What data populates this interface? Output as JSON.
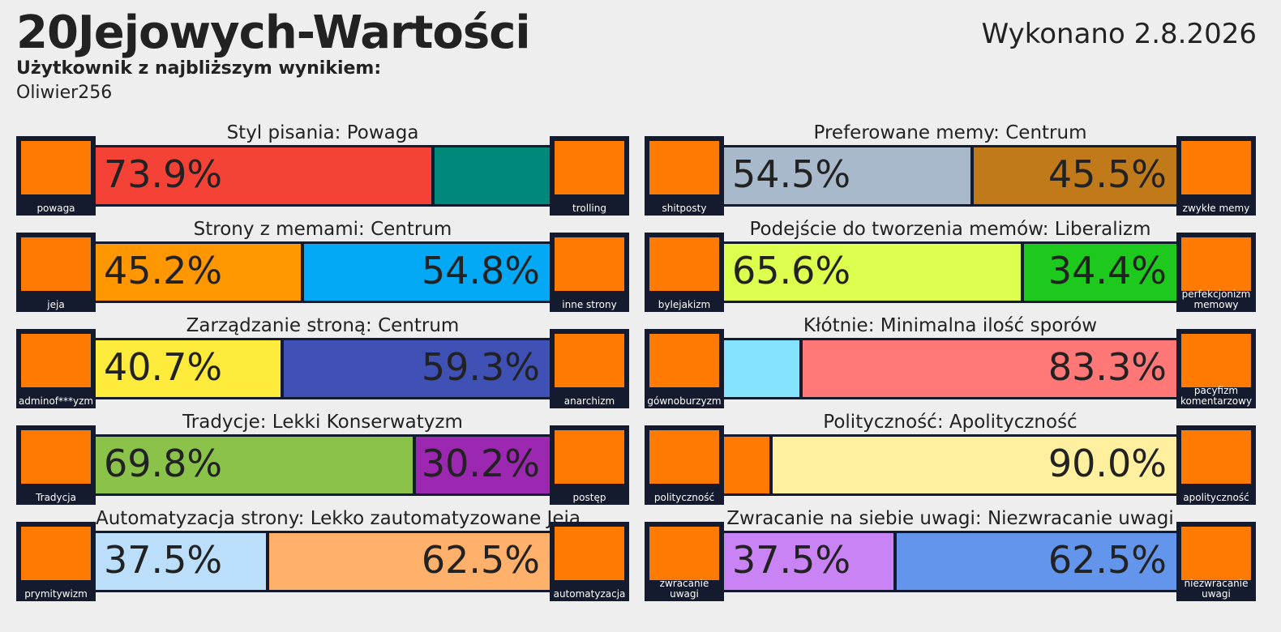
{
  "header": {
    "title": "20Jejowych-Wartości",
    "date": "Wykonano 2.8.2026",
    "match_label": "Użytkownik z najbliższym wynikiem:",
    "match_user": "Oliwier256"
  },
  "axes": [
    {
      "title": "Styl pisania: Powaga",
      "left": "powaga",
      "right": "trolling",
      "values": [
        73.9,
        26.1
      ],
      "value_labels": [
        "73.9%",
        null
      ],
      "colors": [
        "#f44336",
        "#00897b"
      ]
    },
    {
      "title": "Strony z memami: Centrum",
      "left": "jeja",
      "right": "inne strony",
      "values": [
        45.2,
        54.8
      ],
      "value_labels": [
        "45.2%",
        "54.8%"
      ],
      "colors": [
        "#ff9800",
        "#03a9f4"
      ]
    },
    {
      "title": "Zarządzanie stroną: Centrum",
      "left": "adminof***yzm",
      "right": "anarchizm",
      "values": [
        40.7,
        59.3
      ],
      "value_labels": [
        "40.7%",
        "59.3%"
      ],
      "colors": [
        "#ffeb3b",
        "#3f51b5"
      ]
    },
    {
      "title": "Tradycje: Lekki Konserwatyzm",
      "left": "Tradycja",
      "right": "postęp",
      "values": [
        69.8,
        30.2
      ],
      "value_labels": [
        "69.8%",
        "30.2%"
      ],
      "colors": [
        "#8bc34a",
        "#9c27b0"
      ]
    },
    {
      "title": "Automatyzacja strony: Lekko zautomatyzowane Jeja",
      "left": "prymitywizm",
      "right": "automatyzacja",
      "values": [
        37.5,
        62.5
      ],
      "value_labels": [
        "37.5%",
        "62.5%"
      ],
      "colors": [
        "#bbdefb",
        "#ffb06a"
      ]
    },
    {
      "title": "Preferowane memy: Centrum",
      "left": "shitposty",
      "right": "zwykłe memy",
      "values": [
        54.5,
        45.5
      ],
      "value_labels": [
        "54.5%",
        "45.5%"
      ],
      "colors": [
        "#a9b9cc",
        "#c07a1a"
      ]
    },
    {
      "title": "Podejście do tworzenia memów: Liberalizm",
      "left": "bylejakizm",
      "right": "perfekcjonizm memowy",
      "values": [
        65.6,
        34.4
      ],
      "value_labels": [
        "65.6%",
        "34.4%"
      ],
      "colors": [
        "#ddff4d",
        "#1ec91e"
      ]
    },
    {
      "title": "Kłótnie: Minimalna ilość sporów",
      "left": "gównoburzyzm",
      "right": "pacyfizm komentarzowy",
      "values": [
        16.7,
        83.3
      ],
      "value_labels": [
        null,
        "83.3%"
      ],
      "colors": [
        "#84e4ff",
        "#ff7777"
      ]
    },
    {
      "title": "Polityczność: Apolityczność",
      "left": "polityczność",
      "right": "apolityczność",
      "values": [
        10.0,
        90.0
      ],
      "value_labels": [
        null,
        "90.0%"
      ],
      "colors": [
        "#ff7a00",
        "#fff0a0"
      ]
    },
    {
      "title": "Zwracanie na siebie uwagi: Niezwracanie uwagi",
      "left": "zwracanie uwagi",
      "right": "niezwracanie uwagi",
      "values": [
        37.5,
        62.5
      ],
      "value_labels": [
        "37.5%",
        "62.5%"
      ],
      "colors": [
        "#c983f5",
        "#6495ed"
      ]
    }
  ]
}
